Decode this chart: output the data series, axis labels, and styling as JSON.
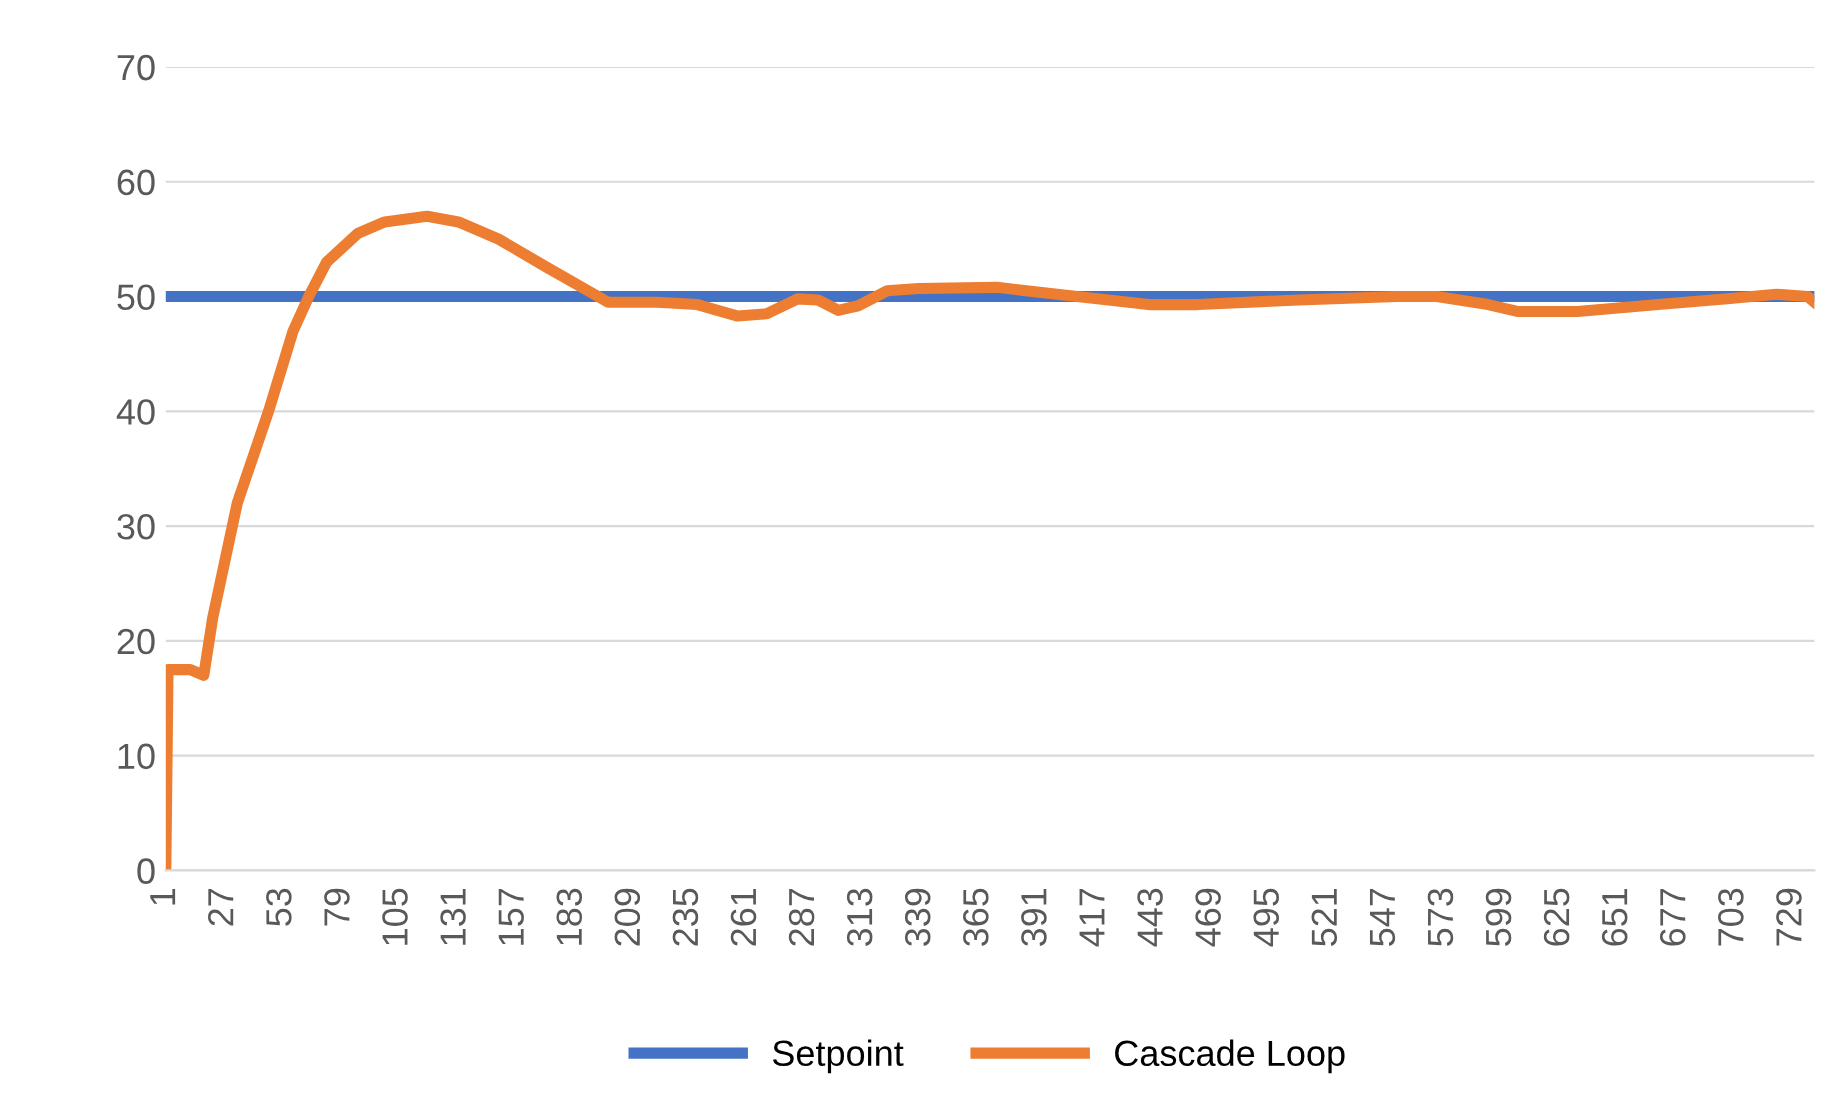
{
  "chart_data": {
    "type": "line",
    "xlim": [
      1,
      739
    ],
    "xticks": [
      1,
      27,
      53,
      79,
      105,
      131,
      157,
      183,
      209,
      235,
      261,
      287,
      313,
      339,
      365,
      391,
      417,
      443,
      469,
      495,
      521,
      547,
      573,
      599,
      625,
      651,
      677,
      703,
      729
    ],
    "ylim": [
      0,
      70
    ],
    "yticks": [
      0,
      10,
      20,
      30,
      40,
      50,
      60,
      70
    ],
    "grid": "y",
    "legend": "bottom",
    "marker": "none",
    "line_style": "solid",
    "series": [
      {
        "name": "Setpoint",
        "color": "#4472c4",
        "x": [
          1,
          739
        ],
        "values": [
          50,
          50
        ]
      },
      {
        "name": "Cascade Loop",
        "color": "#ed7d31",
        "x": [
          1,
          2,
          12,
          18,
          22,
          33,
          47,
          58,
          65,
          73,
          87,
          99,
          118,
          132,
          150,
          172,
          190,
          199,
          221,
          239,
          257,
          270,
          284,
          293,
          302,
          311,
          324,
          338,
          373,
          400,
          418,
          441,
          463,
          508,
          552,
          570,
          593,
          606,
          633,
          669,
          700,
          722,
          736,
          739
        ],
        "values": [
          0,
          17.5,
          17.5,
          17,
          22,
          32,
          40,
          47,
          50,
          53,
          55.5,
          56.5,
          57,
          56.5,
          55,
          52.5,
          50.5,
          49.5,
          49.5,
          49.3,
          48.3,
          48.5,
          49.8,
          49.7,
          48.8,
          49.2,
          50.5,
          50.7,
          50.8,
          50.2,
          49.8,
          49.3,
          49.3,
          49.7,
          50,
          50,
          49.3,
          48.7,
          48.7,
          49.3,
          49.8,
          50.2,
          50,
          49.5
        ]
      }
    ]
  }
}
